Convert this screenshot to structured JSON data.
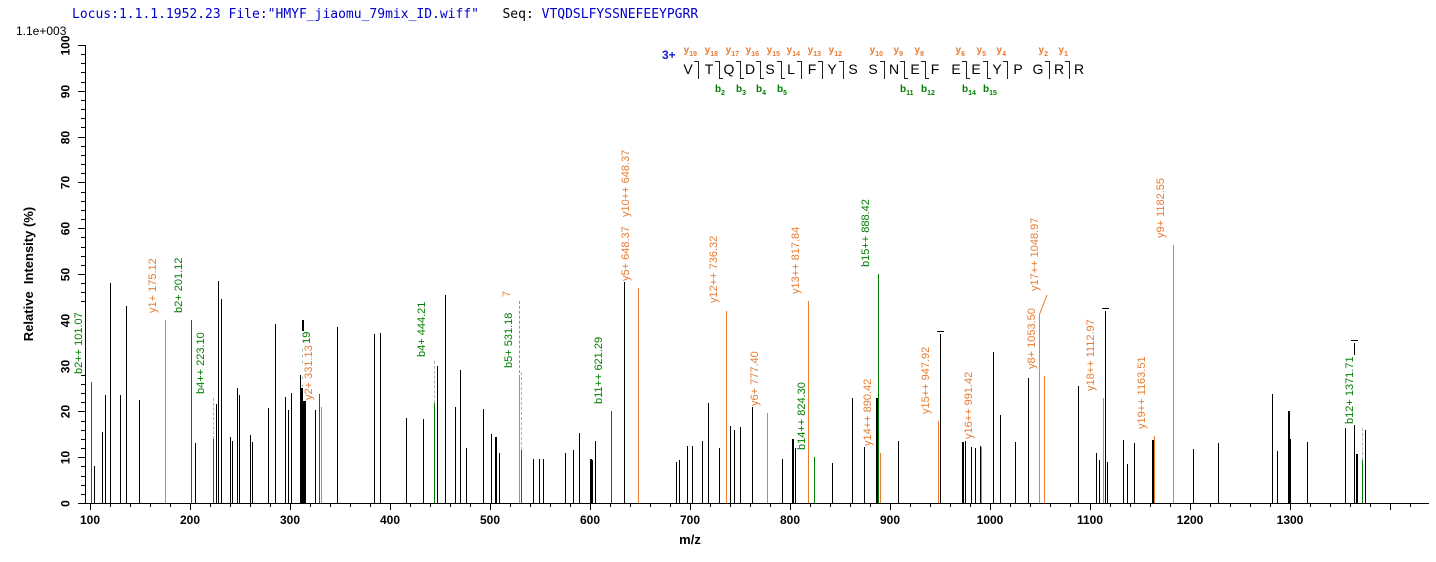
{
  "header": {
    "locus_file": "Locus:1.1.1.1952.23 File:\"HMYF_jiaomu_79mix_ID.wiff\"",
    "seq_label": "Seq:",
    "sequence": "VTQDSLFYSSNEFEEYPGRR",
    "scale": "1.1e+003",
    "text_color": "#0000cc"
  },
  "peptide": {
    "charge_label": "3+",
    "residues": [
      "V",
      "T",
      "Q",
      "D",
      "S",
      "L",
      "F",
      "Y",
      "S",
      "S",
      "N",
      "E",
      "F",
      "E",
      "E",
      "Y",
      "P",
      "G",
      "R",
      "R"
    ],
    "cleavages": [
      {
        "after": 1,
        "y": "19"
      },
      {
        "after": 2,
        "y": "18",
        "b": "2"
      },
      {
        "after": 3,
        "y": "17",
        "b": "3"
      },
      {
        "after": 4,
        "y": "16",
        "b": "4"
      },
      {
        "after": 5,
        "y": "15",
        "b": "5"
      },
      {
        "after": 6,
        "y": "14"
      },
      {
        "after": 7,
        "y": "13"
      },
      {
        "after": 8,
        "y": "12"
      },
      {
        "after": 10,
        "y": "10"
      },
      {
        "after": 11,
        "y": "9",
        "b": "11"
      },
      {
        "after": 12,
        "y": "8",
        "b": "12"
      },
      {
        "after": 14,
        "y": "6",
        "b": "14"
      },
      {
        "after": 15,
        "y": "5",
        "b": "15"
      },
      {
        "after": 16,
        "y": "4"
      },
      {
        "after": 18,
        "y": "2"
      },
      {
        "after": 19,
        "y": "1"
      }
    ]
  },
  "chart_data": {
    "type": "bar",
    "title": "",
    "xlabel": "m/z",
    "ylabel": "Relative  Intensity (%)",
    "xlim": [
      95,
      1438
    ],
    "ylim": [
      0,
      100
    ],
    "x_major_tick": 100,
    "x_minor_tick": 20,
    "x_label_range": [
      100,
      1300
    ],
    "y_major_tick": 10,
    "y_minor_tick": 2,
    "grid": false,
    "colors": {
      "b_ion": "#007e00",
      "y_ion": "#e87c33",
      "unassigned": "#000000",
      "leader_dash": "#b3b3b3"
    },
    "peaks": [
      {
        "m": 101.07,
        "i": 26.5,
        "c": "g",
        "l": "b2++ 101.07"
      },
      {
        "m": 104,
        "i": 8,
        "c": "k"
      },
      {
        "m": 112,
        "i": 15.5,
        "c": "k"
      },
      {
        "m": 115,
        "i": 23.5,
        "c": "k"
      },
      {
        "m": 120,
        "i": 48,
        "c": "k"
      },
      {
        "m": 130,
        "i": 23.5,
        "c": "k"
      },
      {
        "m": 136,
        "i": 43,
        "c": "k"
      },
      {
        "m": 149,
        "i": 22.5,
        "c": "k"
      },
      {
        "m": 175.12,
        "i": 40,
        "c": "o",
        "l": "y1+ 175.12"
      },
      {
        "m": 201.12,
        "i": 40,
        "c": "g",
        "l": "b2+ 201.12"
      },
      {
        "m": 205,
        "i": 13,
        "c": "k"
      },
      {
        "m": 223.1,
        "i": 14,
        "c": "g",
        "l": "b4++ 223.10",
        "f": 23,
        "ld": "g"
      },
      {
        "m": 225.5,
        "i": 21.6,
        "c": "k"
      },
      {
        "m": 228,
        "i": 48.5,
        "c": "k"
      },
      {
        "m": 231,
        "i": 44.5,
        "c": "k"
      },
      {
        "m": 240,
        "i": 14.4,
        "c": "k"
      },
      {
        "m": 242,
        "i": 13.5,
        "c": "k"
      },
      {
        "m": 247,
        "i": 25,
        "c": "k"
      },
      {
        "m": 249,
        "i": 23.6,
        "c": "k"
      },
      {
        "m": 260,
        "i": 14.8,
        "c": "k"
      },
      {
        "m": 262,
        "i": 13.4,
        "c": "k"
      },
      {
        "m": 278,
        "i": 20.7,
        "c": "k"
      },
      {
        "m": 285,
        "i": 39,
        "c": "k"
      },
      {
        "m": 295,
        "i": 23.2,
        "c": "k"
      },
      {
        "m": 298,
        "i": 20.3,
        "c": "k"
      },
      {
        "m": 301,
        "i": 24,
        "c": "k"
      },
      {
        "m": 310,
        "i": 28,
        "c": "k",
        "w": 2
      },
      {
        "m": 312,
        "i": 40,
        "c": "k",
        "w": 2
      },
      {
        "m": 314,
        "i": 23.5,
        "c": "k",
        "w": 2
      },
      {
        "m": 325,
        "i": 20.3,
        "c": "k"
      },
      {
        "m": 329.19,
        "i": 23.8,
        "c": "g",
        "l": "b3+ 329.19"
      },
      {
        "m": 331.13,
        "i": 21,
        "c": "o",
        "l": "y2+ 331.13"
      },
      {
        "m": 347,
        "i": 38.5,
        "c": "k"
      },
      {
        "m": 384,
        "i": 37,
        "c": "k"
      },
      {
        "m": 390,
        "i": 37.2,
        "c": "k"
      },
      {
        "m": 416,
        "i": 18.5,
        "c": "k"
      },
      {
        "m": 433,
        "i": 18.3,
        "c": "k"
      },
      {
        "m": 444.21,
        "i": 21.8,
        "c": "g",
        "l": "b4+ 444.21",
        "f": 31,
        "ld": "g"
      },
      {
        "m": 446.5,
        "i": 30,
        "c": "k"
      },
      {
        "m": 455,
        "i": 45.5,
        "c": "k"
      },
      {
        "m": 465,
        "i": 21,
        "c": "k"
      },
      {
        "m": 470,
        "i": 29,
        "c": "k"
      },
      {
        "m": 476,
        "i": 12,
        "c": "k"
      },
      {
        "m": 493,
        "i": 20.5,
        "c": "k"
      },
      {
        "m": 501,
        "i": 15,
        "c": "k"
      },
      {
        "m": 505,
        "i": 14.5,
        "c": "k",
        "w": 2
      },
      {
        "m": 509,
        "i": 11,
        "c": "k"
      },
      {
        "m": 528.5,
        "i": 27.3,
        "c": "o",
        "l": "7",
        "f": 44,
        "ld": "o"
      },
      {
        "m": 531.18,
        "i": 11.6,
        "c": "g",
        "l": "b5+ 531.18",
        "f": 28.7,
        "ld": "g"
      },
      {
        "m": 543,
        "i": 9.5,
        "c": "k"
      },
      {
        "m": 549,
        "i": 9.5,
        "c": "k"
      },
      {
        "m": 553,
        "i": 9.5,
        "c": "k"
      },
      {
        "m": 575,
        "i": 11,
        "c": "k"
      },
      {
        "m": 583,
        "i": 11.5,
        "c": "k"
      },
      {
        "m": 589,
        "i": 15.3,
        "c": "k"
      },
      {
        "m": 600,
        "i": 9.5,
        "c": "k",
        "w": 2
      },
      {
        "m": 602,
        "i": 9.3,
        "c": "k"
      },
      {
        "m": 605,
        "i": 13.6,
        "c": "k"
      },
      {
        "m": 621.29,
        "i": 20,
        "c": "g",
        "l": "b11++ 621.29"
      },
      {
        "m": 634,
        "i": 53.5,
        "c": "k"
      },
      {
        "m": 648.37,
        "i": 47,
        "c": "o",
        "l": "y5+ 648.37",
        "l2": "y10++ 648.37"
      },
      {
        "m": 686,
        "i": 9,
        "c": "k"
      },
      {
        "m": 689,
        "i": 9.3,
        "c": "k"
      },
      {
        "m": 697,
        "i": 12.5,
        "c": "k"
      },
      {
        "m": 702,
        "i": 12.5,
        "c": "k"
      },
      {
        "m": 712,
        "i": 13.5,
        "c": "k"
      },
      {
        "m": 718,
        "i": 21.8,
        "c": "k"
      },
      {
        "m": 729,
        "i": 12,
        "c": "k"
      },
      {
        "m": 736.32,
        "i": 42,
        "c": "o",
        "l": "y12++ 736.32"
      },
      {
        "m": 740,
        "i": 16.8,
        "c": "k"
      },
      {
        "m": 744,
        "i": 16,
        "c": "k"
      },
      {
        "m": 750,
        "i": 16.5,
        "c": "k"
      },
      {
        "m": 762,
        "i": 29.4,
        "c": "k"
      },
      {
        "m": 777.4,
        "i": 19.6,
        "c": "o",
        "l": "y6+ 777.40"
      },
      {
        "m": 792,
        "i": 9.5,
        "c": "k"
      },
      {
        "m": 802,
        "i": 14,
        "c": "k",
        "w": 2
      },
      {
        "m": 805,
        "i": 12,
        "c": "k"
      },
      {
        "m": 817.84,
        "i": 44,
        "c": "o",
        "l": "y13++ 817.84"
      },
      {
        "m": 824.3,
        "i": 10.1,
        "c": "g",
        "l": "b14++ 824.30"
      },
      {
        "m": 842,
        "i": 8.7,
        "c": "k"
      },
      {
        "m": 862,
        "i": 23,
        "c": "k"
      },
      {
        "m": 874,
        "i": 22,
        "c": "k"
      },
      {
        "m": 886,
        "i": 23,
        "c": "k",
        "w": 2
      },
      {
        "m": 888.42,
        "i": 50,
        "c": "g",
        "l": "b15++ 888.42"
      },
      {
        "m": 890.42,
        "i": 10.9,
        "c": "o",
        "l": "y14++ 890.42"
      },
      {
        "m": 908,
        "i": 13.5,
        "c": "k"
      },
      {
        "m": 947.92,
        "i": 17.8,
        "c": "o",
        "l": "y15++ 947.92"
      },
      {
        "m": 949.5,
        "i": 37,
        "c": "k",
        "t": true
      },
      {
        "m": 972,
        "i": 13.3,
        "c": "k",
        "w": 2
      },
      {
        "m": 975,
        "i": 13.5,
        "c": "k"
      },
      {
        "m": 981,
        "i": 12.2,
        "c": "k"
      },
      {
        "m": 985,
        "i": 12,
        "c": "k"
      },
      {
        "m": 990,
        "i": 12.5,
        "c": "k"
      },
      {
        "m": 991.42,
        "i": 12.3,
        "c": "o",
        "l": "y16++ 991.42"
      },
      {
        "m": 1003,
        "i": 33,
        "c": "k"
      },
      {
        "m": 1010,
        "i": 19.2,
        "c": "k"
      },
      {
        "m": 1025,
        "i": 13.4,
        "c": "k"
      },
      {
        "m": 1038,
        "i": 27.3,
        "c": "k"
      },
      {
        "m": 1048.97,
        "i": 41,
        "c": "o",
        "l": "y17++ 1048.97",
        "f": 45.5,
        "ld": "d"
      },
      {
        "m": 1053.5,
        "i": 27.7,
        "c": "o",
        "l": "y8+ 1053.50"
      },
      {
        "m": 1088,
        "i": 25.5,
        "c": "k"
      },
      {
        "m": 1106,
        "i": 11,
        "c": "k"
      },
      {
        "m": 1109,
        "i": 9.4,
        "c": "k"
      },
      {
        "m": 1112.97,
        "i": 22.9,
        "c": "o",
        "l": "y18++ 1112.97"
      },
      {
        "m": 1114.5,
        "i": 42,
        "c": "k",
        "t": true
      },
      {
        "m": 1117,
        "i": 9,
        "c": "k"
      },
      {
        "m": 1133,
        "i": 13.8,
        "c": "k"
      },
      {
        "m": 1137,
        "i": 8.5,
        "c": "k"
      },
      {
        "m": 1144,
        "i": 13,
        "c": "k"
      },
      {
        "m": 1162,
        "i": 13.7,
        "c": "k",
        "w": 2
      },
      {
        "m": 1163.51,
        "i": 14.6,
        "c": "o",
        "l": "y19++ 1163.51"
      },
      {
        "m": 1182.55,
        "i": 56.3,
        "c": "o",
        "l": "y9+ 1182.55"
      },
      {
        "m": 1203,
        "i": 11.7,
        "c": "k"
      },
      {
        "m": 1228,
        "i": 13,
        "c": "k"
      },
      {
        "m": 1282,
        "i": 23.7,
        "c": "k"
      },
      {
        "m": 1287,
        "i": 11.4,
        "c": "k"
      },
      {
        "m": 1298,
        "i": 20,
        "c": "k",
        "w": 2
      },
      {
        "m": 1300,
        "i": 14,
        "c": "k"
      },
      {
        "m": 1317,
        "i": 13.4,
        "c": "k"
      },
      {
        "m": 1355,
        "i": 16.3,
        "c": "k"
      },
      {
        "m": 1364,
        "i": 35,
        "c": "k",
        "t": true
      },
      {
        "m": 1366,
        "i": 10.8,
        "c": "k",
        "w": 2
      },
      {
        "m": 1371.71,
        "i": 9.4,
        "c": "g",
        "l": "b12+ 1371.71",
        "f": 16.3,
        "ld": "g"
      },
      {
        "m": 1374.5,
        "i": 16,
        "c": "k"
      }
    ]
  }
}
